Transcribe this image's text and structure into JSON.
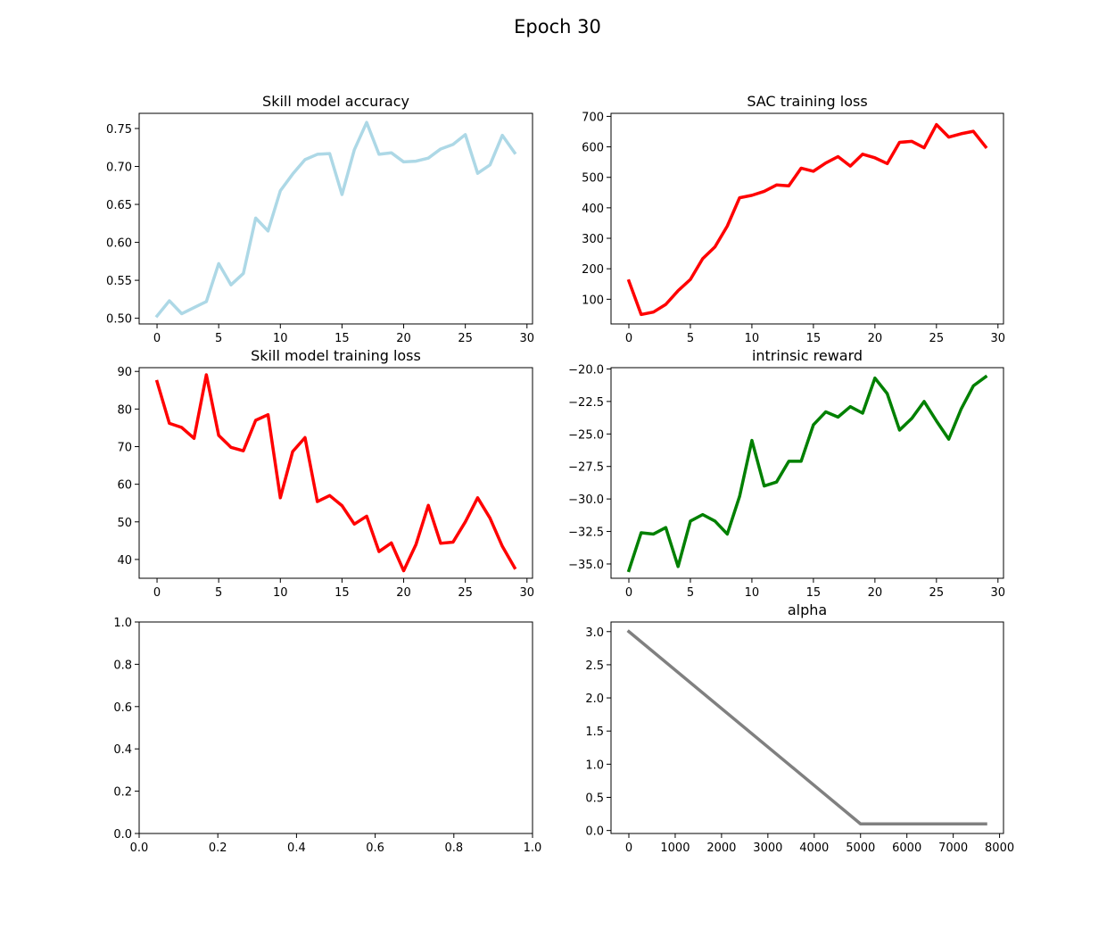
{
  "figure": {
    "suptitle": "Epoch 30"
  },
  "chart_data": [
    {
      "type": "line",
      "title": "Skill model accuracy",
      "color": "#add8e6",
      "xlim": [
        -1.45,
        30.45
      ],
      "ylim": [
        0.4925,
        0.77
      ],
      "xticks": [
        0,
        5,
        10,
        15,
        20,
        25,
        30
      ],
      "yticks": [
        0.5,
        0.55,
        0.6,
        0.65,
        0.7,
        0.75
      ],
      "xtick_labels": [
        "0",
        "5",
        "10",
        "15",
        "20",
        "25",
        "30"
      ],
      "ytick_labels": [
        "0.50",
        "0.55",
        "0.60",
        "0.65",
        "0.70",
        "0.75"
      ],
      "x": [
        0,
        1,
        2,
        3,
        4,
        5,
        6,
        7,
        8,
        9,
        10,
        11,
        12,
        13,
        14,
        15,
        16,
        17,
        18,
        19,
        20,
        21,
        22,
        23,
        24,
        25,
        26,
        27,
        28,
        29
      ],
      "y": [
        0.503,
        0.523,
        0.506,
        0.514,
        0.522,
        0.572,
        0.544,
        0.559,
        0.632,
        0.615,
        0.668,
        0.69,
        0.709,
        0.716,
        0.717,
        0.663,
        0.722,
        0.758,
        0.716,
        0.718,
        0.706,
        0.707,
        0.711,
        0.723,
        0.729,
        0.742,
        0.691,
        0.702,
        0.741,
        0.718
      ]
    },
    {
      "type": "line",
      "title": "SAC training loss",
      "color": "#ff0000",
      "xlim": [
        -1.45,
        30.45
      ],
      "ylim": [
        19,
        710
      ],
      "xticks": [
        0,
        5,
        10,
        15,
        20,
        25,
        30
      ],
      "yticks": [
        100,
        200,
        300,
        400,
        500,
        600,
        700
      ],
      "xtick_labels": [
        "0",
        "5",
        "10",
        "15",
        "20",
        "25",
        "30"
      ],
      "ytick_labels": [
        "100",
        "200",
        "300",
        "400",
        "500",
        "600",
        "700"
      ],
      "x": [
        0,
        1,
        2,
        3,
        4,
        5,
        6,
        7,
        8,
        9,
        10,
        11,
        12,
        13,
        14,
        15,
        16,
        17,
        18,
        19,
        20,
        21,
        22,
        23,
        24,
        25,
        26,
        27,
        28,
        29
      ],
      "y": [
        160,
        50,
        58,
        83,
        128,
        165,
        233,
        272,
        340,
        433,
        441,
        454,
        475,
        472,
        530,
        520,
        547,
        568,
        537,
        576,
        564,
        545,
        615,
        618,
        597,
        673,
        632,
        643,
        651,
        600
      ]
    },
    {
      "type": "line",
      "title": "Skill model training loss",
      "color": "#ff0000",
      "xlim": [
        -1.45,
        30.45
      ],
      "ylim": [
        35,
        91
      ],
      "xticks": [
        0,
        5,
        10,
        15,
        20,
        25,
        30
      ],
      "yticks": [
        40,
        50,
        60,
        70,
        80,
        90
      ],
      "xtick_labels": [
        "0",
        "5",
        "10",
        "15",
        "20",
        "25",
        "30"
      ],
      "ytick_labels": [
        "40",
        "50",
        "60",
        "70",
        "80",
        "90"
      ],
      "x": [
        0,
        1,
        2,
        3,
        4,
        5,
        6,
        7,
        8,
        9,
        10,
        11,
        12,
        13,
        14,
        15,
        16,
        17,
        18,
        19,
        20,
        21,
        22,
        23,
        24,
        25,
        26,
        27,
        28,
        29
      ],
      "y": [
        87.3,
        76.2,
        75.1,
        72.2,
        89.1,
        73.0,
        69.8,
        68.9,
        77.0,
        78.5,
        56.4,
        68.7,
        72.4,
        55.4,
        57.0,
        54.3,
        49.4,
        51.5,
        42.1,
        44.4,
        37.0,
        44.0,
        54.4,
        44.3,
        44.6,
        50.0,
        56.4,
        51.0,
        43.5,
        37.8
      ]
    },
    {
      "type": "line",
      "title": "intrinsic reward",
      "color": "#008000",
      "xlim": [
        -1.45,
        30.45
      ],
      "ylim": [
        -36.1,
        -19.9
      ],
      "xticks": [
        0,
        5,
        10,
        15,
        20,
        25,
        30
      ],
      "yticks": [
        -35.0,
        -32.5,
        -30.0,
        -27.5,
        -25.0,
        -22.5,
        -20.0
      ],
      "xtick_labels": [
        "0",
        "5",
        "10",
        "15",
        "20",
        "25",
        "30"
      ],
      "ytick_labels": [
        "−35.0",
        "−32.5",
        "−30.0",
        "−27.5",
        "−25.0",
        "−22.5",
        "−20.0"
      ],
      "x": [
        0,
        1,
        2,
        3,
        4,
        5,
        6,
        7,
        8,
        9,
        10,
        11,
        12,
        13,
        14,
        15,
        16,
        17,
        18,
        19,
        20,
        21,
        22,
        23,
        24,
        25,
        26,
        27,
        28,
        29
      ],
      "y": [
        -35.5,
        -32.6,
        -32.7,
        -32.2,
        -35.2,
        -31.7,
        -31.2,
        -31.7,
        -32.7,
        -29.8,
        -25.5,
        -29.0,
        -28.7,
        -27.1,
        -27.1,
        -24.3,
        -23.3,
        -23.7,
        -22.9,
        -23.4,
        -20.7,
        -21.9,
        -24.7,
        -23.8,
        -22.5,
        -24.0,
        -25.4,
        -23.1,
        -21.3,
        -20.6
      ]
    },
    {
      "type": "line",
      "title": "",
      "empty": true,
      "xlim": [
        0,
        1
      ],
      "ylim": [
        0,
        1
      ],
      "xticks": [
        0,
        0.2,
        0.4,
        0.6,
        0.8,
        1.0
      ],
      "yticks": [
        0,
        0.2,
        0.4,
        0.6,
        0.8,
        1.0
      ],
      "xtick_labels": [
        "0.0",
        "0.2",
        "0.4",
        "0.6",
        "0.8",
        "1.0"
      ],
      "ytick_labels": [
        "0.0",
        "0.2",
        "0.4",
        "0.6",
        "0.8",
        "1.0"
      ],
      "x": [],
      "y": []
    },
    {
      "type": "line",
      "title": "alpha",
      "color": "#808080",
      "xlim": [
        -385,
        8085
      ],
      "ylim": [
        -0.045,
        3.145
      ],
      "xticks": [
        0,
        1000,
        2000,
        3000,
        4000,
        5000,
        6000,
        7000,
        8000
      ],
      "yticks": [
        0.0,
        0.5,
        1.0,
        1.5,
        2.0,
        2.5,
        3.0
      ],
      "xtick_labels": [
        "0",
        "1000",
        "2000",
        "3000",
        "4000",
        "5000",
        "6000",
        "7000",
        "8000"
      ],
      "ytick_labels": [
        "0.0",
        "0.5",
        "1.0",
        "1.5",
        "2.0",
        "2.5",
        "3.0"
      ],
      "x": [
        0,
        5000,
        7700
      ],
      "y": [
        3.0,
        0.1,
        0.1
      ]
    }
  ]
}
